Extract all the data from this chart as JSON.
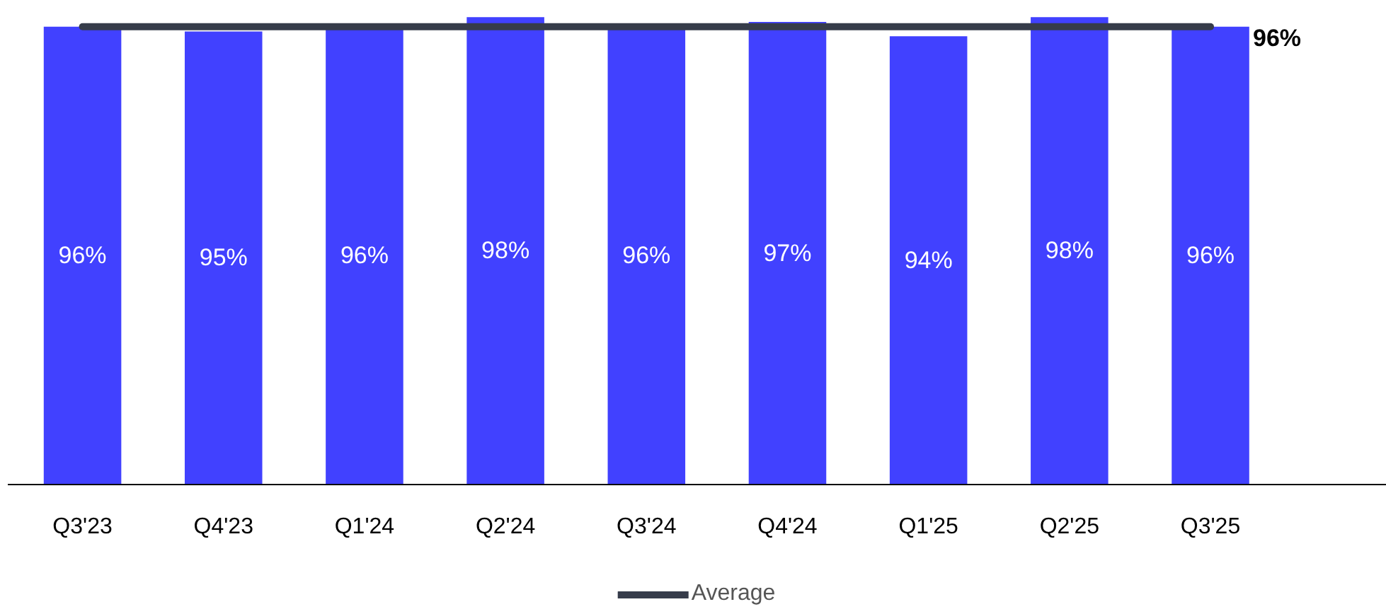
{
  "chart_data": {
    "type": "bar",
    "categories": [
      "Q3'23",
      "Q4'23",
      "Q1'24",
      "Q2'24",
      "Q3'24",
      "Q4'24",
      "Q1'25",
      "Q2'25",
      "Q3'25"
    ],
    "series": [
      {
        "color": "#4141ff",
        "values": [
          96,
          95,
          96,
          98,
          96,
          97,
          94,
          98,
          96
        ],
        "value_labels": [
          "96%",
          "95%",
          "96%",
          "98%",
          "96%",
          "97%",
          "94%",
          "98%",
          "96%"
        ]
      },
      {
        "type": "line",
        "name": "Average",
        "color": "#363c4a",
        "values": [
          96,
          96,
          96,
          96,
          96,
          96,
          96,
          96,
          96
        ],
        "value_labels": [
          null,
          null,
          null,
          null,
          null,
          null,
          null,
          null,
          "96%"
        ]
      }
    ],
    "tick_labels": "x",
    "legend": "bottom"
  }
}
